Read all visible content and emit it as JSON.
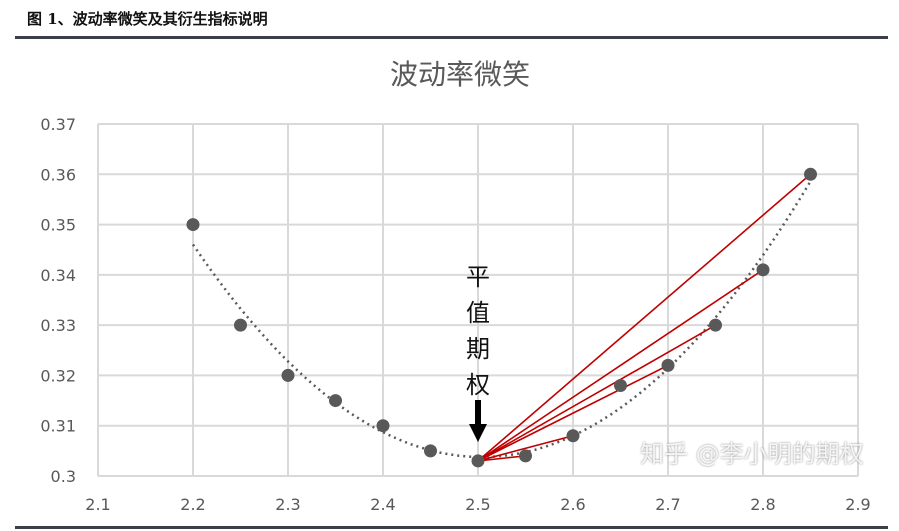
{
  "figure_title": "图 1、波动率微笑及其衍生指标说明",
  "watermark": "知乎 @李小明的期权",
  "chart_data": {
    "type": "scatter",
    "title": "波动率微笑",
    "xlabel": "",
    "ylabel": "",
    "xlim": [
      2.1,
      2.9
    ],
    "ylim": [
      0.3,
      0.37
    ],
    "xticks": [
      "2.1",
      "2.2",
      "2.3",
      "2.4",
      "2.5",
      "2.6",
      "2.7",
      "2.8",
      "2.9"
    ],
    "yticks": [
      "0.3",
      "0.31",
      "0.32",
      "0.33",
      "0.34",
      "0.35",
      "0.36",
      "0.37"
    ],
    "grid": true,
    "trendline": "dotted polynomial",
    "x": [
      2.2,
      2.25,
      2.3,
      2.35,
      2.4,
      2.45,
      2.5,
      2.55,
      2.6,
      2.65,
      2.7,
      2.75,
      2.8,
      2.85
    ],
    "y": [
      0.35,
      0.33,
      0.32,
      0.315,
      0.31,
      0.305,
      0.303,
      0.304,
      0.308,
      0.318,
      0.322,
      0.33,
      0.341,
      0.36
    ],
    "annotation": {
      "text": [
        "平",
        "值",
        "期",
        "权"
      ],
      "x": 2.5,
      "y": 0.303
    },
    "red_lines_from": [
      2.5,
      0.303
    ],
    "red_lines_to": [
      [
        2.55,
        0.304
      ],
      [
        2.6,
        0.308
      ],
      [
        2.7,
        0.322
      ],
      [
        2.75,
        0.33
      ],
      [
        2.8,
        0.341
      ],
      [
        2.85,
        0.36
      ]
    ],
    "colors": {
      "points": "#595959",
      "lines": "#c00000",
      "grid": "#d9d9d9",
      "trend": "#595959"
    }
  }
}
